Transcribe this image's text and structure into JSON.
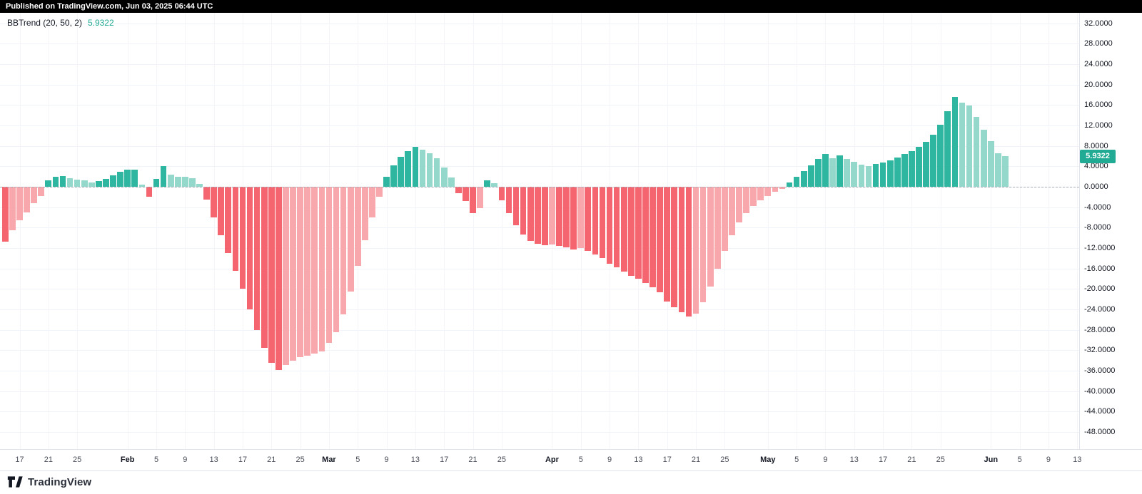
{
  "header": {
    "published": "Published on TradingView.com, Jun 03, 2025 06:44 UTC"
  },
  "legend": {
    "title": "BBTrend (20, 50, 2)",
    "value": "5.9322"
  },
  "price_axis": {
    "labels": [
      "32.0000",
      "28.0000",
      "24.0000",
      "20.0000",
      "16.0000",
      "12.0000",
      "8.0000",
      "4.0000",
      "0.0000",
      "-4.0000",
      "-8.0000",
      "-12.0000",
      "-16.0000",
      "-20.0000",
      "-24.0000",
      "-28.0000",
      "-32.0000",
      "-36.0000",
      "-40.0000",
      "-44.0000",
      "-48.0000"
    ],
    "badge": {
      "value": "5.9322",
      "color": "#22ab94"
    }
  },
  "time_axis": {
    "ticks": [
      {
        "label": "17",
        "i": 2,
        "month": false
      },
      {
        "label": "21",
        "i": 6,
        "month": false
      },
      {
        "label": "25",
        "i": 10,
        "month": false
      },
      {
        "label": "Feb",
        "i": 17,
        "month": true
      },
      {
        "label": "5",
        "i": 21,
        "month": false
      },
      {
        "label": "9",
        "i": 25,
        "month": false
      },
      {
        "label": "13",
        "i": 29,
        "month": false
      },
      {
        "label": "17",
        "i": 33,
        "month": false
      },
      {
        "label": "21",
        "i": 37,
        "month": false
      },
      {
        "label": "25",
        "i": 41,
        "month": false
      },
      {
        "label": "Mar",
        "i": 45,
        "month": true
      },
      {
        "label": "5",
        "i": 49,
        "month": false
      },
      {
        "label": "9",
        "i": 53,
        "month": false
      },
      {
        "label": "13",
        "i": 57,
        "month": false
      },
      {
        "label": "17",
        "i": 61,
        "month": false
      },
      {
        "label": "21",
        "i": 65,
        "month": false
      },
      {
        "label": "25",
        "i": 69,
        "month": false
      },
      {
        "label": "Apr",
        "i": 76,
        "month": true
      },
      {
        "label": "5",
        "i": 80,
        "month": false
      },
      {
        "label": "9",
        "i": 84,
        "month": false
      },
      {
        "label": "13",
        "i": 88,
        "month": false
      },
      {
        "label": "17",
        "i": 92,
        "month": false
      },
      {
        "label": "21",
        "i": 96,
        "month": false
      },
      {
        "label": "25",
        "i": 100,
        "month": false
      },
      {
        "label": "May",
        "i": 106,
        "month": true
      },
      {
        "label": "5",
        "i": 110,
        "month": false
      },
      {
        "label": "9",
        "i": 114,
        "month": false
      },
      {
        "label": "13",
        "i": 118,
        "month": false
      },
      {
        "label": "17",
        "i": 122,
        "month": false
      },
      {
        "label": "21",
        "i": 126,
        "month": false
      },
      {
        "label": "25",
        "i": 130,
        "month": false
      },
      {
        "label": "Jun",
        "i": 137,
        "month": true
      },
      {
        "label": "5",
        "i": 141,
        "month": false
      },
      {
        "label": "9",
        "i": 145,
        "month": false
      },
      {
        "label": "13",
        "i": 149,
        "month": false
      }
    ]
  },
  "footer": {
    "brand": "TradingView"
  },
  "chart_data": {
    "type": "bar",
    "title": "BBTrend (20, 50, 2)",
    "xlabel": "",
    "ylabel": "",
    "ylim": [
      -51,
      34
    ],
    "interval": "1D",
    "start_date": "2025-01-15",
    "last_value": 5.9322,
    "colors": {
      "up_strong": "#2eb6a1",
      "up_weak": "#93d8cb",
      "down_strong": "#f4656f",
      "down_weak": "#f8a7ad"
    },
    "values": [
      -10.8,
      -8.5,
      -6.6,
      -5.0,
      -3.2,
      -1.8,
      1.2,
      1.9,
      2.1,
      1.7,
      1.4,
      1.2,
      0.9,
      1.1,
      1.6,
      2.3,
      2.9,
      3.3,
      3.4,
      0.4,
      -1.9,
      1.6,
      4.0,
      2.4,
      2.0,
      1.9,
      1.7,
      0.6,
      -2.5,
      -6.0,
      -9.5,
      -13.0,
      -16.5,
      -20.0,
      -24.0,
      -28.0,
      -31.5,
      -34.5,
      -35.8,
      -34.8,
      -34.0,
      -33.4,
      -33.0,
      -32.6,
      -32.2,
      -30.5,
      -28.5,
      -25.0,
      -20.5,
      -15.5,
      -10.5,
      -6.0,
      -2.0,
      2.0,
      4.2,
      5.8,
      7.0,
      7.8,
      7.3,
      6.6,
      5.6,
      3.8,
      1.8,
      -1.2,
      -2.8,
      -5.2,
      -4.2,
      1.3,
      0.7,
      -2.6,
      -5.2,
      -7.6,
      -9.4,
      -10.6,
      -11.2,
      -11.5,
      -11.3,
      -11.6,
      -11.9,
      -12.3,
      -12.0,
      -12.6,
      -13.2,
      -14.0,
      -15.0,
      -15.8,
      -16.6,
      -17.4,
      -18.0,
      -18.8,
      -19.6,
      -20.6,
      -22.4,
      -23.6,
      -24.6,
      -25.4,
      -24.8,
      -22.6,
      -19.5,
      -16.0,
      -12.5,
      -9.5,
      -7.0,
      -5.2,
      -3.8,
      -2.6,
      -1.8,
      -1.0,
      -0.4,
      0.8,
      1.9,
      3.0,
      4.2,
      5.4,
      6.4,
      5.6,
      6.1,
      5.5,
      4.9,
      4.3,
      4.1,
      4.4,
      4.8,
      5.2,
      5.7,
      6.4,
      7.0,
      7.8,
      8.8,
      10.2,
      12.2,
      14.8,
      17.6,
      16.4,
      15.9,
      13.6,
      11.2,
      8.9,
      6.6,
      5.9322
    ]
  }
}
